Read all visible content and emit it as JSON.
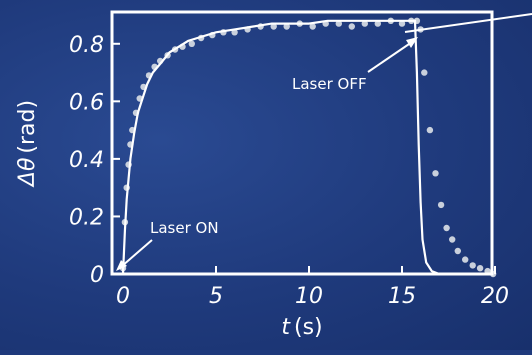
{
  "chart_data": {
    "type": "scatter",
    "xlabel": "t (s)",
    "xlabel_parts": {
      "var": "t",
      "unit": "(s)"
    },
    "ylabel": "Δθ (rad)",
    "ylabel_parts": {
      "var": "Δθ",
      "unit": "(rad)"
    },
    "xlim": [
      0,
      20
    ],
    "ylim": [
      0,
      0.9
    ],
    "x_ticks": [
      0,
      5,
      10,
      15,
      20
    ],
    "x_tick_labels": [
      "0",
      "5",
      "10",
      "15",
      "20"
    ],
    "y_ticks": [
      0,
      0.2,
      0.4,
      0.6,
      0.8
    ],
    "y_tick_labels": [
      "0",
      "0.2",
      "0.4",
      "0.6",
      "0.8"
    ],
    "grid": false,
    "series": [
      {
        "kind": "measured points",
        "x": [
          0.0,
          0.1,
          0.2,
          0.3,
          0.4,
          0.5,
          0.7,
          0.9,
          1.1,
          1.4,
          1.7,
          2.0,
          2.4,
          2.8,
          3.2,
          3.7,
          4.2,
          4.8,
          5.4,
          6.0,
          6.7,
          7.4,
          8.1,
          8.8,
          9.5,
          10.2,
          10.9,
          11.6,
          12.3,
          13.0,
          13.7,
          14.4,
          15.0,
          15.5,
          15.8,
          16.0,
          16.2,
          16.5,
          16.8,
          17.1,
          17.4,
          17.7,
          18.0,
          18.4,
          18.8,
          19.2,
          19.6,
          19.9
        ],
        "y": [
          0.02,
          0.18,
          0.3,
          0.38,
          0.45,
          0.5,
          0.56,
          0.61,
          0.65,
          0.69,
          0.72,
          0.74,
          0.76,
          0.78,
          0.79,
          0.8,
          0.82,
          0.83,
          0.84,
          0.84,
          0.85,
          0.86,
          0.86,
          0.86,
          0.87,
          0.86,
          0.87,
          0.87,
          0.86,
          0.87,
          0.87,
          0.88,
          0.87,
          0.88,
          0.88,
          0.85,
          0.7,
          0.5,
          0.35,
          0.24,
          0.16,
          0.12,
          0.08,
          0.05,
          0.03,
          0.02,
          0.01,
          0.0
        ]
      },
      {
        "kind": "fit curve",
        "x": [
          0.0,
          0.1,
          0.2,
          0.4,
          0.6,
          0.8,
          1.0,
          1.3,
          1.6,
          2.0,
          2.5,
          3.0,
          3.5,
          4.0,
          5.0,
          6.0,
          7.0,
          8.0,
          9.0,
          10.0,
          11.0,
          12.0,
          13.0,
          14.0,
          15.0,
          15.7,
          15.8,
          15.9,
          16.0,
          16.1,
          16.3,
          16.6,
          17.0
        ],
        "y": [
          0.0,
          0.15,
          0.26,
          0.4,
          0.49,
          0.56,
          0.6,
          0.66,
          0.7,
          0.73,
          0.77,
          0.79,
          0.81,
          0.82,
          0.84,
          0.85,
          0.86,
          0.87,
          0.87,
          0.87,
          0.88,
          0.88,
          0.88,
          0.88,
          0.88,
          0.88,
          0.7,
          0.45,
          0.25,
          0.12,
          0.04,
          0.01,
          0.0
        ]
      }
    ],
    "annotations": [
      {
        "text": "Laser ON",
        "x": 0,
        "y": 0.02
      },
      {
        "text": "Laser OFF",
        "x": 15.8,
        "y": 0.88
      }
    ],
    "colors": {
      "background": "#1f3a7c",
      "axes": "#ffffff",
      "points": "#c9d0dc",
      "fit": "#ffffff"
    }
  }
}
